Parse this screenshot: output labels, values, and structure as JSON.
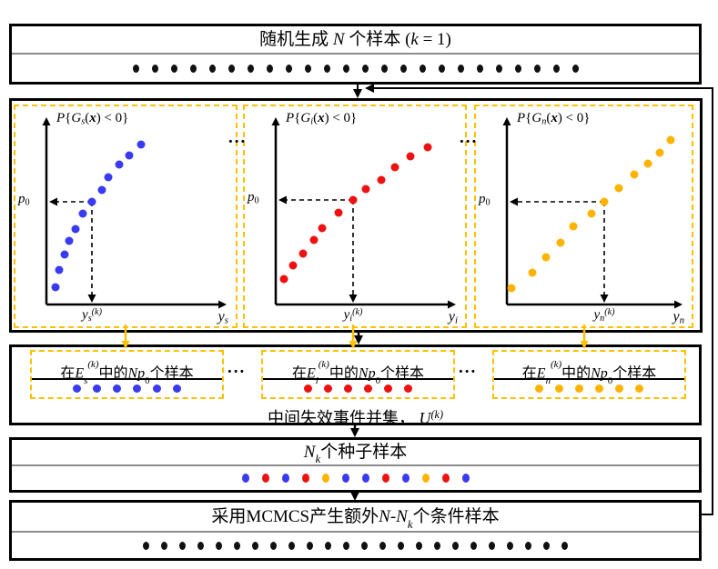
{
  "colors": {
    "blue": "#3a3af0",
    "red": "#ee1111",
    "yellow": "#ffb300",
    "dashed_border": "#ffc000",
    "black_dot": "#111111",
    "divider_gray": "#8c8c8c"
  },
  "top_box": {
    "title": [
      {
        "t": "随机生成 "
      },
      {
        "t": "N",
        "i": 1
      },
      {
        "t": " 个样本 ("
      },
      {
        "t": "k",
        "i": 1
      },
      {
        "t": " = 1)"
      }
    ],
    "dots": {
      "count": 24,
      "color": "#111111"
    }
  },
  "plots_section": {
    "ellipsis": "...",
    "panels": [
      {
        "id": "s",
        "title": [
          {
            "t": "P",
            "i": 1
          },
          {
            "t": "{"
          },
          {
            "t": "G",
            "i": 1
          },
          {
            "t": "s",
            "i": 1,
            "sub": 1
          },
          {
            "t": "("
          },
          {
            "t": "x",
            "i": 1,
            "b": 1
          },
          {
            "t": ") < 0}"
          }
        ],
        "p0_label": [
          {
            "t": "p",
            "i": 1
          },
          {
            "t": "0",
            "sub": 1
          }
        ],
        "xtick_label": [
          {
            "t": "y",
            "i": 1
          },
          {
            "t": "s",
            "i": 1,
            "sub": 1
          },
          {
            "t": "(k)",
            "i": 1,
            "sup": 1
          }
        ],
        "xaxis_label": [
          {
            "t": "y",
            "i": 1
          },
          {
            "t": "s",
            "i": 1,
            "sub": 1
          }
        ],
        "dot_color": "#3a3af0",
        "p0_point": [
          84,
          105
        ],
        "dots": [
          [
            44,
            199
          ],
          [
            48,
            180
          ],
          [
            54,
            163
          ],
          [
            59,
            148
          ],
          [
            66,
            135
          ],
          [
            74,
            118
          ],
          [
            84,
            105
          ],
          [
            95,
            92
          ],
          [
            102,
            78
          ],
          [
            114,
            64
          ],
          [
            125,
            54
          ],
          [
            138,
            42
          ]
        ]
      },
      {
        "id": "i",
        "title": [
          {
            "t": "P",
            "i": 1
          },
          {
            "t": "{"
          },
          {
            "t": "G",
            "i": 1
          },
          {
            "t": "i",
            "i": 1,
            "sub": 1
          },
          {
            "t": "("
          },
          {
            "t": "x",
            "i": 1,
            "b": 1
          },
          {
            "t": ") < 0}"
          }
        ],
        "p0_label": [
          {
            "t": "p",
            "i": 1
          },
          {
            "t": "0",
            "sub": 1
          }
        ],
        "xtick_label": [
          {
            "t": "y",
            "i": 1
          },
          {
            "t": "i",
            "i": 1,
            "sub": 1
          },
          {
            "t": "(k)",
            "i": 1,
            "sup": 1
          }
        ],
        "xaxis_label": [
          {
            "t": "y",
            "i": 1
          },
          {
            "t": "i",
            "i": 1,
            "sub": 1
          }
        ],
        "dot_color": "#ee1111",
        "p0_point": [
          119,
          103
        ],
        "dots": [
          [
            43,
            190
          ],
          [
            53,
            175
          ],
          [
            64,
            162
          ],
          [
            76,
            147
          ],
          [
            85,
            134
          ],
          [
            103,
            117
          ],
          [
            119,
            103
          ],
          [
            133,
            91
          ],
          [
            150,
            81
          ],
          [
            165,
            67
          ],
          [
            182,
            55
          ],
          [
            201,
            45
          ]
        ]
      },
      {
        "id": "n",
        "title": [
          {
            "t": "P",
            "i": 1
          },
          {
            "t": "{"
          },
          {
            "t": "G",
            "i": 1
          },
          {
            "t": "n",
            "i": 1,
            "sub": 1
          },
          {
            "t": "("
          },
          {
            "t": "x",
            "i": 1,
            "b": 1
          },
          {
            "t": ") < 0}"
          }
        ],
        "p0_label": [
          {
            "t": "p",
            "i": 1
          },
          {
            "t": "0",
            "sub": 1
          }
        ],
        "xtick_label": [
          {
            "t": "y",
            "i": 1
          },
          {
            "t": "n",
            "i": 1,
            "sub": 1
          },
          {
            "t": "(k)",
            "i": 1,
            "sup": 1
          }
        ],
        "xaxis_label": [
          {
            "t": "y",
            "i": 1
          },
          {
            "t": "n",
            "i": 1,
            "sub": 1
          }
        ],
        "dot_color": "#ffb300",
        "p0_point": [
          141,
          105
        ],
        "dots": [
          [
            39,
            200
          ],
          [
            62,
            183
          ],
          [
            77,
            166
          ],
          [
            93,
            150
          ],
          [
            107,
            132
          ],
          [
            127,
            118
          ],
          [
            141,
            105
          ],
          [
            157,
            90
          ],
          [
            174,
            75
          ],
          [
            189,
            63
          ],
          [
            202,
            51
          ],
          [
            214,
            37
          ]
        ]
      }
    ]
  },
  "samples_section": {
    "ellipsis": "...",
    "boxes": [
      {
        "title": [
          {
            "t": "在"
          },
          {
            "t": "E",
            "i": 1
          },
          {
            "t": "s",
            "i": 1,
            "sub": 1
          },
          {
            "t": "(k)",
            "i": 1,
            "sup": 1
          },
          {
            "t": "中的"
          },
          {
            "t": "N",
            "i": 1
          },
          {
            "t": "p",
            "i": 1
          },
          {
            "t": "0",
            "sub": 1
          },
          {
            "t": "个样本"
          }
        ],
        "dots": {
          "count": 6,
          "color": "#3a3af0"
        }
      },
      {
        "title": [
          {
            "t": "在"
          },
          {
            "t": "E",
            "i": 1
          },
          {
            "t": "i",
            "i": 1,
            "sub": 1
          },
          {
            "t": "(k)",
            "i": 1,
            "sup": 1
          },
          {
            "t": "中的"
          },
          {
            "t": "N",
            "i": 1
          },
          {
            "t": "p",
            "i": 1
          },
          {
            "t": "0",
            "sub": 1
          },
          {
            "t": "个样本"
          }
        ],
        "dots": {
          "count": 6,
          "color": "#ee1111"
        }
      },
      {
        "title": [
          {
            "t": "在"
          },
          {
            "t": "E",
            "i": 1
          },
          {
            "t": "n",
            "i": 1,
            "sub": 1
          },
          {
            "t": "(k)",
            "i": 1,
            "sup": 1
          },
          {
            "t": "中的"
          },
          {
            "t": "N",
            "i": 1
          },
          {
            "t": "p",
            "i": 1
          },
          {
            "t": "0",
            "sub": 1
          },
          {
            "t": "个样本"
          }
        ],
        "dots": {
          "count": 6,
          "color": "#ffb300"
        }
      }
    ],
    "union_label": [
      {
        "t": "中间失效事件并集， "
      },
      {
        "t": "U",
        "i": 1
      },
      {
        "t": "(k)",
        "i": 1,
        "sup": 1
      }
    ]
  },
  "seeds_box": {
    "title": [
      {
        "t": "N",
        "i": 1
      },
      {
        "t": "k",
        "i": 1,
        "sub": 1
      },
      {
        "t": "个种子样本"
      }
    ],
    "dots": {
      "colors": [
        "#3a3af0",
        "#ee1111",
        "#3a3af0",
        "#ee1111",
        "#ffb300",
        "#3a3af0",
        "#3a3af0",
        "#ee1111",
        "#3a3af0",
        "#ffb300",
        "#ee1111",
        "#3a3af0"
      ]
    }
  },
  "mcmcs_box": {
    "title": [
      {
        "t": "采用MCMCS产生额外"
      },
      {
        "t": "N",
        "i": 1
      },
      {
        "t": "-"
      },
      {
        "t": "N",
        "i": 1
      },
      {
        "t": "k",
        "i": 1,
        "sub": 1
      },
      {
        "t": "个条件样本"
      }
    ],
    "dots": {
      "count": 24,
      "color": "#111111"
    }
  }
}
